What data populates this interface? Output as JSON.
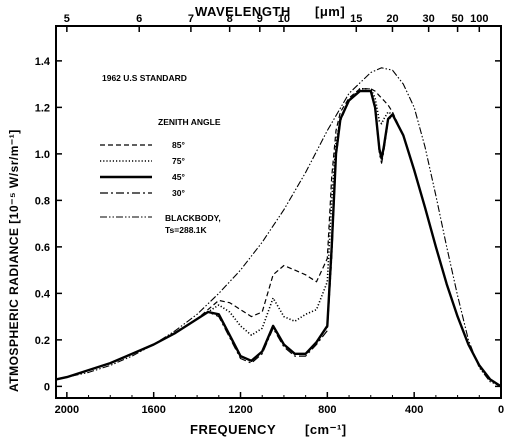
{
  "chart_data": {
    "type": "line",
    "title": "",
    "annotation": "1962 U.S STANDARD",
    "legend_title": "ZENITH ANGLE",
    "blackbody_label_line1": "BLACKBODY,",
    "blackbody_label_line2": "Ts=288.1K",
    "xlabel": "FREQUENCY",
    "xlabel_unit": "[cm⁻¹]",
    "ylabel": "ATMOSPHERIC RADIANCE [10⁻⁵ W/sr/m⁻¹]",
    "top_axis_label": "WAVELENGTH",
    "top_axis_unit": "[μm]",
    "xlim": [
      2050,
      0
    ],
    "ylim": [
      -0.05,
      1.55
    ],
    "x_ticks": [
      {
        "v": 2000,
        "label": "2000"
      },
      {
        "v": 1600,
        "label": "1600"
      },
      {
        "v": 1200,
        "label": "1200"
      },
      {
        "v": 800,
        "label": "800"
      },
      {
        "v": 400,
        "label": "400"
      },
      {
        "v": 0,
        "label": "0"
      }
    ],
    "y_ticks": [
      {
        "v": 0,
        "label": "0"
      },
      {
        "v": 0.2,
        "label": "0.2"
      },
      {
        "v": 0.4,
        "label": "0.4"
      },
      {
        "v": 0.6,
        "label": "0.6"
      },
      {
        "v": 0.8,
        "label": "0.8"
      },
      {
        "v": 1.0,
        "label": "1.0"
      },
      {
        "v": 1.2,
        "label": "1.2"
      },
      {
        "v": 1.4,
        "label": "1.4"
      }
    ],
    "top_ticks": [
      {
        "wl": 5,
        "label": "5"
      },
      {
        "wl": 6,
        "label": "6"
      },
      {
        "wl": 7,
        "label": "7"
      },
      {
        "wl": 8,
        "label": "8"
      },
      {
        "wl": 9,
        "label": "9"
      },
      {
        "wl": 10,
        "label": "10"
      },
      {
        "wl": 15,
        "label": "15"
      },
      {
        "wl": 20,
        "label": "20"
      },
      {
        "wl": 30,
        "label": "30"
      },
      {
        "wl": 50,
        "label": "50"
      },
      {
        "wl": 100,
        "label": "100"
      }
    ],
    "series": [
      {
        "name": "85°",
        "style": "dashed",
        "x": [
          2050,
          2000,
          1900,
          1800,
          1700,
          1600,
          1500,
          1400,
          1350,
          1300,
          1250,
          1200,
          1150,
          1100,
          1050,
          1000,
          950,
          900,
          850,
          800,
          780,
          760,
          740,
          700,
          650,
          600,
          580,
          560,
          550,
          540,
          520,
          500,
          450,
          400,
          350,
          300,
          250,
          200,
          150,
          100,
          50,
          0
        ],
        "y": [
          0.03,
          0.04,
          0.07,
          0.1,
          0.14,
          0.18,
          0.23,
          0.29,
          0.33,
          0.37,
          0.36,
          0.33,
          0.3,
          0.32,
          0.48,
          0.52,
          0.5,
          0.48,
          0.45,
          0.55,
          0.9,
          1.1,
          1.18,
          1.24,
          1.28,
          1.28,
          1.27,
          1.25,
          1.24,
          1.23,
          1.21,
          1.18,
          1.08,
          0.93,
          0.77,
          0.6,
          0.44,
          0.3,
          0.18,
          0.09,
          0.03,
          0.0
        ]
      },
      {
        "name": "75°",
        "style": "dotted",
        "x": [
          2050,
          2000,
          1900,
          1800,
          1700,
          1600,
          1500,
          1400,
          1350,
          1300,
          1250,
          1200,
          1150,
          1100,
          1050,
          1000,
          950,
          900,
          850,
          800,
          780,
          760,
          740,
          700,
          650,
          600,
          580,
          560,
          550,
          540,
          520,
          500,
          450,
          400,
          350,
          300,
          250,
          200,
          150,
          100,
          50,
          0
        ],
        "y": [
          0.03,
          0.04,
          0.07,
          0.1,
          0.14,
          0.18,
          0.23,
          0.29,
          0.32,
          0.35,
          0.32,
          0.26,
          0.22,
          0.25,
          0.38,
          0.3,
          0.28,
          0.31,
          0.33,
          0.45,
          0.8,
          1.05,
          1.15,
          1.23,
          1.28,
          1.28,
          1.24,
          1.14,
          1.13,
          1.15,
          1.18,
          1.17,
          1.08,
          0.93,
          0.77,
          0.6,
          0.44,
          0.3,
          0.18,
          0.09,
          0.03,
          0.0
        ]
      },
      {
        "name": "45°",
        "style": "solid",
        "x": [
          2050,
          2000,
          1900,
          1800,
          1700,
          1600,
          1500,
          1400,
          1350,
          1300,
          1250,
          1200,
          1150,
          1100,
          1050,
          1000,
          950,
          900,
          850,
          800,
          780,
          760,
          740,
          700,
          650,
          600,
          580,
          560,
          550,
          540,
          520,
          500,
          450,
          400,
          350,
          300,
          250,
          200,
          150,
          100,
          50,
          0
        ],
        "y": [
          0.03,
          0.04,
          0.07,
          0.1,
          0.14,
          0.18,
          0.23,
          0.29,
          0.32,
          0.31,
          0.22,
          0.13,
          0.11,
          0.15,
          0.26,
          0.18,
          0.14,
          0.14,
          0.19,
          0.26,
          0.6,
          1.0,
          1.15,
          1.23,
          1.27,
          1.27,
          1.2,
          1.02,
          0.98,
          1.03,
          1.15,
          1.17,
          1.08,
          0.93,
          0.77,
          0.6,
          0.44,
          0.3,
          0.18,
          0.09,
          0.03,
          0.0
        ]
      },
      {
        "name": "30°",
        "style": "dashdot",
        "x": [
          2050,
          2000,
          1900,
          1800,
          1700,
          1600,
          1500,
          1400,
          1350,
          1300,
          1250,
          1200,
          1150,
          1100,
          1050,
          1000,
          950,
          900,
          850,
          800,
          780,
          760,
          740,
          700,
          650,
          600,
          580,
          560,
          550,
          540,
          520,
          500,
          450,
          400,
          350,
          300,
          250,
          200,
          150,
          100,
          50,
          0
        ],
        "y": [
          0.03,
          0.04,
          0.07,
          0.1,
          0.14,
          0.18,
          0.23,
          0.29,
          0.32,
          0.3,
          0.21,
          0.12,
          0.1,
          0.14,
          0.25,
          0.17,
          0.13,
          0.13,
          0.18,
          0.24,
          0.55,
          0.98,
          1.14,
          1.23,
          1.27,
          1.27,
          1.19,
          1.0,
          0.96,
          1.01,
          1.14,
          1.17,
          1.08,
          0.93,
          0.77,
          0.6,
          0.44,
          0.3,
          0.18,
          0.09,
          0.03,
          0.0
        ]
      },
      {
        "name": "BLACKBODY, Ts=288.1K",
        "style": "dashdotdot",
        "x": [
          2050,
          2000,
          1900,
          1800,
          1700,
          1600,
          1500,
          1400,
          1300,
          1200,
          1100,
          1000,
          900,
          800,
          700,
          600,
          550,
          500,
          450,
          400,
          350,
          300,
          250,
          200,
          150,
          100,
          50,
          0
        ],
        "y": [
          0.03,
          0.04,
          0.06,
          0.09,
          0.13,
          0.18,
          0.24,
          0.31,
          0.4,
          0.5,
          0.62,
          0.76,
          0.92,
          1.1,
          1.26,
          1.35,
          1.37,
          1.36,
          1.3,
          1.2,
          1.03,
          0.82,
          0.6,
          0.39,
          0.2,
          0.08,
          0.02,
          0.0
        ]
      }
    ]
  }
}
